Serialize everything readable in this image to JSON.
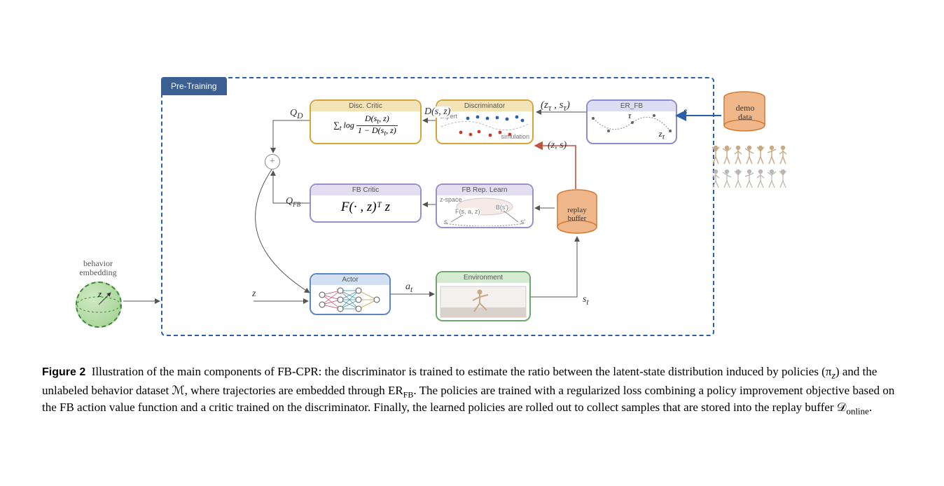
{
  "figure_label": "Figure 2",
  "caption_text_1": "Illustration of the main components of FB-CPR: the discriminator is trained to estimate the ratio between the latent-state distribution induced by policies (π",
  "caption_sub_z": "z",
  "caption_text_2": ") and the unlabeled behavior dataset ℳ, where trajectories are embedded through ER",
  "caption_sub_fb": "FB",
  "caption_text_3": ". The policies are trained with a regularized loss combining a policy improvement objective based on the FB action value function and a critic trained on the discriminator. Finally, the learned policies are rolled out to collect samples that are stored into the replay buffer 𝒟",
  "caption_sub_online": "online",
  "caption_text_4": ".",
  "pretraining_label": "Pre-Training",
  "modules": {
    "disc_critic": {
      "title": "Disc. Critic",
      "formula_html": "∑<sub>t</sub> log <span style='display:inline-block;vertical-align:middle'><span style='display:block;border-bottom:1px solid #333;padding:0 2px'>D(s<sub>t</sub>, z)</span><span style='display:block;padding:0 2px'>1 − D(s<sub>t</sub>, z)</span></span>"
    },
    "discriminator": {
      "title": "Discriminator",
      "expert_label": "expert",
      "sim_label": "simulation"
    },
    "er_fb": {
      "title": "ER_FB",
      "tau": "τ",
      "z_tau": "z",
      "z_tau_sub": "τ"
    },
    "fb_critic": {
      "title": "FB Critic",
      "formula": "F(· , z)ᵀ z"
    },
    "fb_rep": {
      "title": "FB Rep. Learn",
      "zspace": "z-space",
      "f_label": "F(s, a, z)",
      "b_label": "B(s′)",
      "s_label": "s",
      "sp_label": "s′"
    },
    "actor": {
      "title": "Actor"
    },
    "env": {
      "title": "Environment"
    }
  },
  "edge_labels": {
    "QD": "Q",
    "QD_sub": "D",
    "QFB": "Q",
    "QFB_sub": "FB",
    "Dsz": "D(s, z)",
    "a_t": "a",
    "a_t_sub": "t",
    "s_t": "s",
    "s_t_sub": "t",
    "ztau_stau": "(z",
    "ztau_stau_sub1": "τ",
    "ztau_stau_mid": " , s",
    "ztau_stau_sub2": "τ",
    "ztau_stau_end": ")",
    "zs": "(z, s)",
    "s_only": "s",
    "z_only": "z",
    "z_sphere": "z"
  },
  "cylinders": {
    "demo": {
      "label": "demo\ndata"
    },
    "replay": {
      "label": "replay\nbuffer"
    }
  },
  "behavior_label": "behavior\nembedding",
  "colors": {
    "frame": "#2b5fa8",
    "disc_border": "#d6a43a",
    "disc_title_bg": "#f3e3b6",
    "er_border": "#8c8cd0",
    "er_title_bg": "#dcdcf2",
    "fb_border": "#9a8fc9",
    "fb_title_bg": "#e2ddf1",
    "actor_border": "#5c87c7",
    "actor_title_bg": "#d2e0f2",
    "env_border": "#6fa86c",
    "env_title_bg": "#d4ead1",
    "cyl_fill": "#f0b78a",
    "cyl_stroke": "#d07a33",
    "expert_dot": "#2b5fa8",
    "sim_dot": "#c43b2e",
    "sphere_fill": "#9fd08f"
  }
}
